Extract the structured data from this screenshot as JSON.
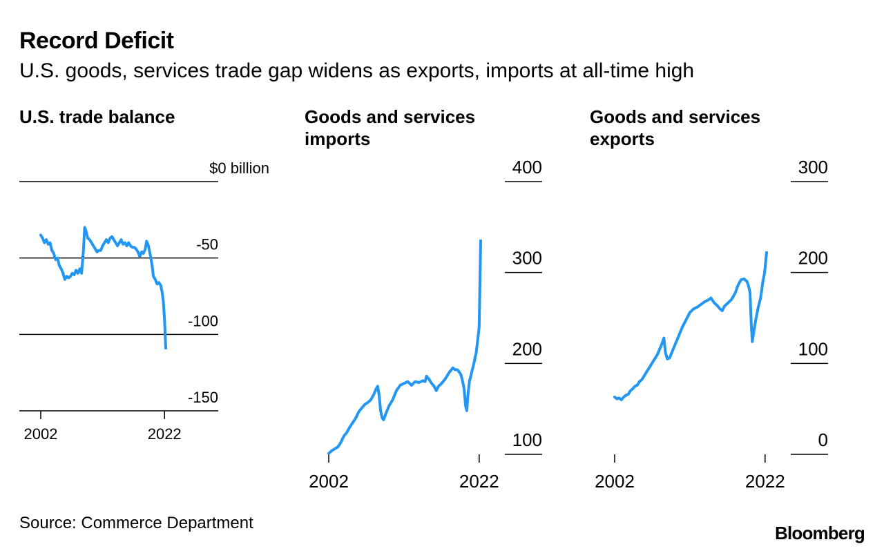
{
  "title": "Record Deficit",
  "subtitle": "U.S. goods, services trade gap widens as exports, imports at all-time high",
  "source": "Source: Commerce Department",
  "logo": "Bloomberg",
  "colors": {
    "line": "#2196f3",
    "text": "#000000",
    "rule": "#000000"
  },
  "chart_data": [
    {
      "type": "line",
      "title": "U.S. trade balance",
      "unit_label": "$0 billion",
      "ylabel": "$ billion",
      "ylim": [
        -150,
        0
      ],
      "yticks": [
        0,
        -50,
        -100,
        -150
      ],
      "ytick_labels": [
        "$0 billion",
        "-50",
        "-100",
        "-150"
      ],
      "xlim": [
        2002,
        2022.2
      ],
      "xticks": [
        2002,
        2022
      ],
      "xtick_labels": [
        "2002",
        "2022"
      ],
      "grid": true,
      "series": [
        {
          "name": "Trade balance",
          "values": [
            [
              2002.0,
              -35
            ],
            [
              2002.3,
              -37
            ],
            [
              2002.6,
              -40
            ],
            [
              2002.9,
              -38
            ],
            [
              2003.2,
              -41
            ],
            [
              2003.5,
              -40
            ],
            [
              2003.8,
              -45
            ],
            [
              2004.1,
              -47
            ],
            [
              2004.4,
              -51
            ],
            [
              2004.7,
              -50
            ],
            [
              2005.0,
              -55
            ],
            [
              2005.3,
              -57
            ],
            [
              2005.6,
              -60
            ],
            [
              2005.9,
              -64
            ],
            [
              2006.2,
              -62
            ],
            [
              2006.5,
              -63
            ],
            [
              2006.8,
              -62
            ],
            [
              2007.1,
              -60
            ],
            [
              2007.4,
              -61
            ],
            [
              2007.7,
              -58
            ],
            [
              2008.0,
              -60
            ],
            [
              2008.3,
              -57
            ],
            [
              2008.6,
              -60
            ],
            [
              2008.9,
              -45
            ],
            [
              2009.1,
              -30
            ],
            [
              2009.3,
              -32
            ],
            [
              2009.6,
              -37
            ],
            [
              2009.9,
              -38
            ],
            [
              2010.2,
              -40
            ],
            [
              2010.5,
              -42
            ],
            [
              2010.8,
              -44
            ],
            [
              2011.1,
              -46
            ],
            [
              2011.4,
              -45
            ],
            [
              2011.7,
              -45
            ],
            [
              2012.0,
              -42
            ],
            [
              2012.3,
              -40
            ],
            [
              2012.6,
              -38
            ],
            [
              2012.9,
              -40
            ],
            [
              2013.2,
              -37
            ],
            [
              2013.5,
              -36
            ],
            [
              2013.8,
              -38
            ],
            [
              2014.1,
              -40
            ],
            [
              2014.4,
              -42
            ],
            [
              2014.7,
              -40
            ],
            [
              2015.0,
              -38
            ],
            [
              2015.3,
              -41
            ],
            [
              2015.6,
              -40
            ],
            [
              2015.9,
              -42
            ],
            [
              2016.2,
              -40
            ],
            [
              2016.5,
              -42
            ],
            [
              2016.8,
              -43
            ],
            [
              2017.1,
              -43
            ],
            [
              2017.4,
              -44
            ],
            [
              2017.7,
              -46
            ],
            [
              2018.0,
              -49
            ],
            [
              2018.3,
              -46
            ],
            [
              2018.6,
              -47
            ],
            [
              2018.9,
              -44
            ],
            [
              2019.1,
              -39
            ],
            [
              2019.4,
              -42
            ],
            [
              2019.7,
              -48
            ],
            [
              2020.0,
              -55
            ],
            [
              2020.2,
              -62
            ],
            [
              2020.5,
              -64
            ],
            [
              2020.8,
              -67
            ],
            [
              2021.1,
              -66
            ],
            [
              2021.4,
              -68
            ],
            [
              2021.6,
              -72
            ],
            [
              2021.8,
              -78
            ],
            [
              2022.0,
              -90
            ],
            [
              2022.2,
              -109
            ]
          ]
        }
      ]
    },
    {
      "type": "line",
      "title": "Goods and services imports",
      "title_lines": [
        "Goods and services",
        "imports"
      ],
      "ylim": [
        100,
        400
      ],
      "yticks": [
        100,
        200,
        300,
        400
      ],
      "ytick_labels": [
        "100",
        "200",
        "300",
        "400"
      ],
      "xlim": [
        2002,
        2022.2
      ],
      "xticks": [
        2002,
        2022
      ],
      "xtick_labels": [
        "2002",
        "2022"
      ],
      "grid": true,
      "series": [
        {
          "name": "Imports",
          "values": [
            [
              2002.0,
              101
            ],
            [
              2002.4,
              104
            ],
            [
              2002.8,
              106
            ],
            [
              2003.2,
              108
            ],
            [
              2003.6,
              113
            ],
            [
              2004.0,
              120
            ],
            [
              2004.4,
              124
            ],
            [
              2004.8,
              130
            ],
            [
              2005.2,
              135
            ],
            [
              2005.6,
              140
            ],
            [
              2006.0,
              147
            ],
            [
              2006.4,
              151
            ],
            [
              2006.8,
              155
            ],
            [
              2007.2,
              157
            ],
            [
              2007.6,
              160
            ],
            [
              2008.0,
              166
            ],
            [
              2008.3,
              172
            ],
            [
              2008.5,
              175
            ],
            [
              2008.7,
              165
            ],
            [
              2008.9,
              148
            ],
            [
              2009.1,
              140
            ],
            [
              2009.3,
              138
            ],
            [
              2009.6,
              145
            ],
            [
              2010.0,
              153
            ],
            [
              2010.5,
              160
            ],
            [
              2011.0,
              170
            ],
            [
              2011.5,
              176
            ],
            [
              2012.0,
              178
            ],
            [
              2012.5,
              180
            ],
            [
              2013.0,
              176
            ],
            [
              2013.5,
              180
            ],
            [
              2014.0,
              179
            ],
            [
              2014.5,
              181
            ],
            [
              2014.8,
              180
            ],
            [
              2015.0,
              186
            ],
            [
              2015.3,
              183
            ],
            [
              2015.6,
              179
            ],
            [
              2016.0,
              175
            ],
            [
              2016.3,
              170
            ],
            [
              2016.6,
              175
            ],
            [
              2017.0,
              178
            ],
            [
              2017.5,
              183
            ],
            [
              2018.0,
              190
            ],
            [
              2018.5,
              195
            ],
            [
              2018.8,
              193
            ],
            [
              2019.1,
              193
            ],
            [
              2019.4,
              190
            ],
            [
              2019.6,
              187
            ],
            [
              2019.8,
              180
            ],
            [
              2020.0,
              172
            ],
            [
              2020.2,
              153
            ],
            [
              2020.35,
              148
            ],
            [
              2020.5,
              165
            ],
            [
              2020.7,
              180
            ],
            [
              2021.0,
              190
            ],
            [
              2021.3,
              200
            ],
            [
              2021.6,
              212
            ],
            [
              2021.8,
              225
            ],
            [
              2022.0,
              240
            ],
            [
              2022.2,
              335
            ]
          ]
        }
      ]
    },
    {
      "type": "line",
      "title": "Goods and services exports",
      "title_lines": [
        "Goods and services",
        "exports"
      ],
      "ylim": [
        0,
        300
      ],
      "yticks": [
        0,
        100,
        200,
        300
      ],
      "ytick_labels": [
        "0",
        "100",
        "200",
        "300"
      ],
      "xlim": [
        2002,
        2022.2
      ],
      "xticks": [
        2002,
        2022
      ],
      "xtick_labels": [
        "2002",
        "2022"
      ],
      "grid": true,
      "series": [
        {
          "name": "Exports",
          "values": [
            [
              2002.0,
              63
            ],
            [
              2002.3,
              61
            ],
            [
              2002.6,
              62
            ],
            [
              2002.9,
              60
            ],
            [
              2003.2,
              63
            ],
            [
              2003.5,
              65
            ],
            [
              2003.8,
              66
            ],
            [
              2004.1,
              70
            ],
            [
              2004.4,
              72
            ],
            [
              2004.7,
              75
            ],
            [
              2005.0,
              76
            ],
            [
              2005.3,
              80
            ],
            [
              2005.6,
              82
            ],
            [
              2005.9,
              86
            ],
            [
              2006.2,
              90
            ],
            [
              2006.5,
              94
            ],
            [
              2006.8,
              98
            ],
            [
              2007.1,
              102
            ],
            [
              2007.4,
              106
            ],
            [
              2007.7,
              110
            ],
            [
              2008.0,
              116
            ],
            [
              2008.3,
              122
            ],
            [
              2008.55,
              128
            ],
            [
              2008.75,
              112
            ],
            [
              2009.0,
              105
            ],
            [
              2009.3,
              106
            ],
            [
              2009.6,
              112
            ],
            [
              2010.0,
              120
            ],
            [
              2010.5,
              130
            ],
            [
              2011.0,
              140
            ],
            [
              2011.5,
              148
            ],
            [
              2012.0,
              156
            ],
            [
              2012.5,
              160
            ],
            [
              2013.0,
              162
            ],
            [
              2013.5,
              165
            ],
            [
              2014.0,
              168
            ],
            [
              2014.5,
              170
            ],
            [
              2014.8,
              172
            ],
            [
              2015.2,
              167
            ],
            [
              2015.6,
              164
            ],
            [
              2016.0,
              160
            ],
            [
              2016.3,
              158
            ],
            [
              2016.6,
              163
            ],
            [
              2017.0,
              166
            ],
            [
              2017.5,
              170
            ],
            [
              2018.0,
              177
            ],
            [
              2018.4,
              186
            ],
            [
              2018.8,
              192
            ],
            [
              2019.2,
              193
            ],
            [
              2019.6,
              190
            ],
            [
              2019.8,
              185
            ],
            [
              2020.0,
              178
            ],
            [
              2020.15,
              145
            ],
            [
              2020.3,
              124
            ],
            [
              2020.5,
              135
            ],
            [
              2020.8,
              150
            ],
            [
              2021.1,
              162
            ],
            [
              2021.4,
              172
            ],
            [
              2021.7,
              190
            ],
            [
              2021.9,
              198
            ],
            [
              2022.0,
              205
            ],
            [
              2022.2,
              222
            ]
          ]
        }
      ]
    }
  ]
}
